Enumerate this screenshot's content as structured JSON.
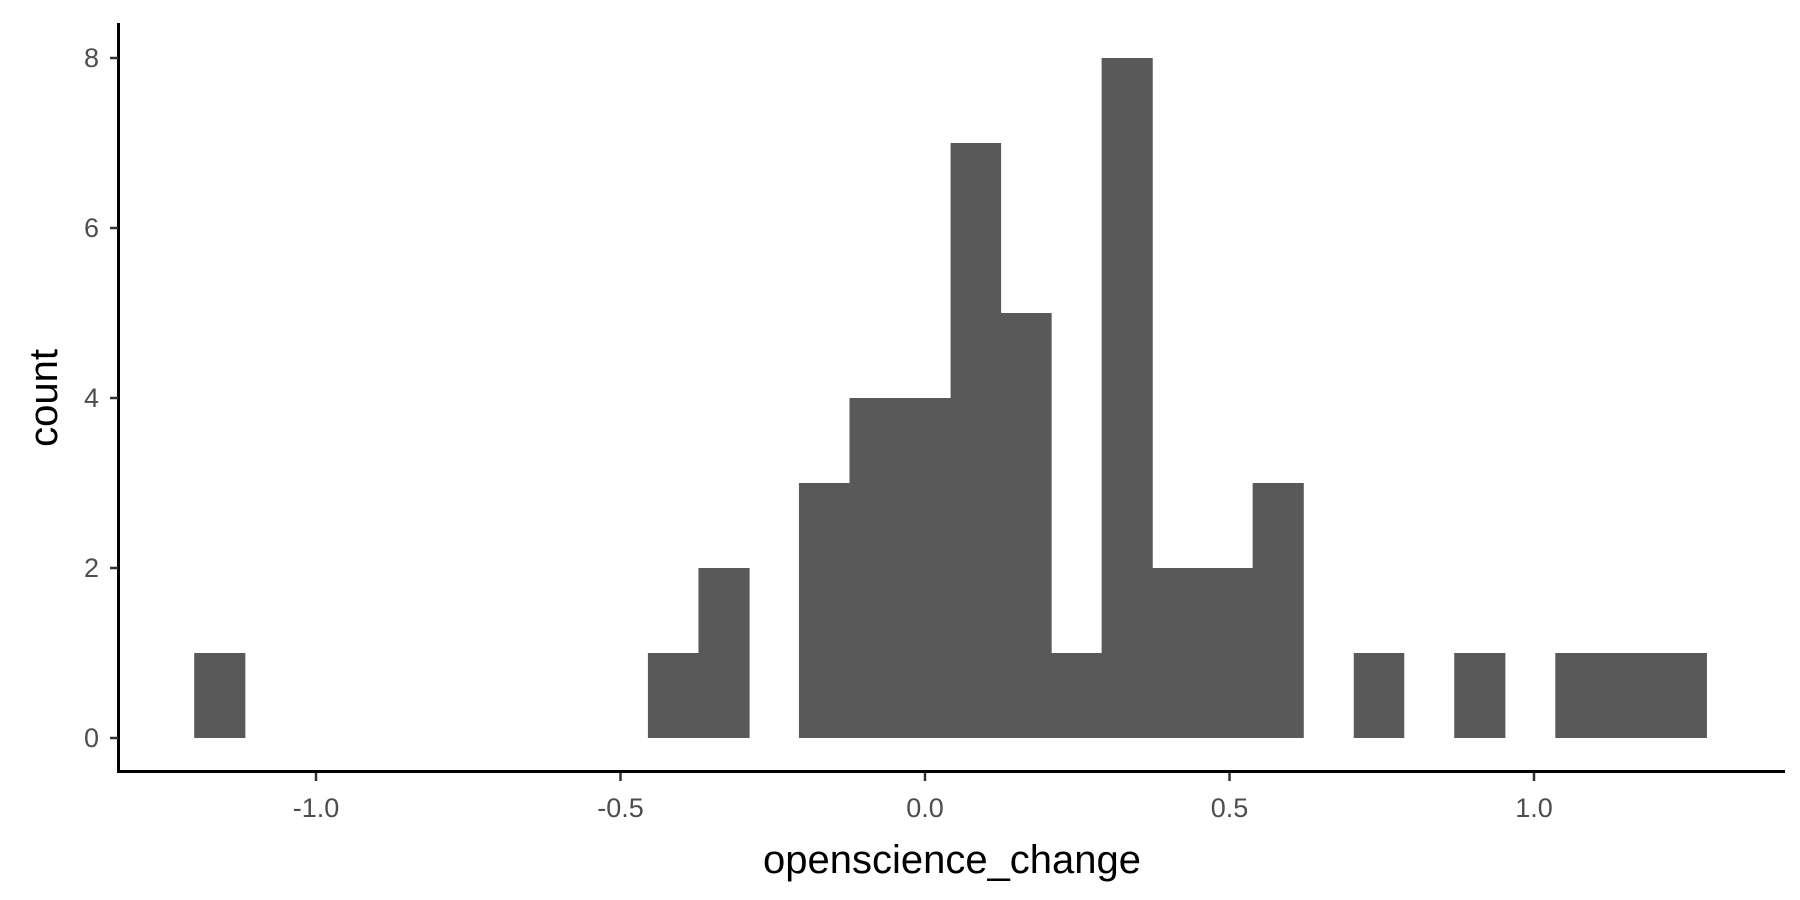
{
  "chart_data": {
    "type": "bar",
    "subtype": "histogram",
    "xlabel": "openscience_change",
    "ylabel": "count",
    "xlim": [
      -1.2,
      1.28
    ],
    "ylim": [
      0,
      8
    ],
    "x_ticks": [
      -1.0,
      -0.5,
      0.0,
      0.5,
      1.0
    ],
    "x_tick_labels": [
      "-1.0",
      "-0.5",
      "0.0",
      "0.5",
      "1.0"
    ],
    "y_ticks": [
      0,
      2,
      4,
      6,
      8
    ],
    "y_tick_labels": [
      "0",
      "2",
      "4",
      "6",
      "8"
    ],
    "bin_width": 0.0827,
    "bins": [
      {
        "x0": -1.2,
        "x1": -1.117,
        "count": 1
      },
      {
        "x0": -0.455,
        "x1": -0.372,
        "count": 1
      },
      {
        "x0": -0.372,
        "x1": -0.289,
        "count": 2
      },
      {
        "x0": -0.207,
        "x1": -0.124,
        "count": 3
      },
      {
        "x0": -0.124,
        "x1": -0.041,
        "count": 4
      },
      {
        "x0": -0.041,
        "x1": 0.042,
        "count": 4
      },
      {
        "x0": 0.042,
        "x1": 0.124,
        "count": 7
      },
      {
        "x0": 0.124,
        "x1": 0.207,
        "count": 5
      },
      {
        "x0": 0.207,
        "x1": 0.29,
        "count": 1
      },
      {
        "x0": 0.29,
        "x1": 0.373,
        "count": 8
      },
      {
        "x0": 0.373,
        "x1": 0.455,
        "count": 2
      },
      {
        "x0": 0.455,
        "x1": 0.538,
        "count": 2
      },
      {
        "x0": 0.538,
        "x1": 0.621,
        "count": 3
      },
      {
        "x0": 0.704,
        "x1": 0.786,
        "count": 1
      },
      {
        "x0": 0.869,
        "x1": 0.952,
        "count": 1
      },
      {
        "x0": 1.035,
        "x1": 1.117,
        "count": 1
      },
      {
        "x0": 1.117,
        "x1": 1.2,
        "count": 1
      },
      {
        "x0": 1.2,
        "x1": 1.283,
        "count": 1
      }
    ],
    "bar_color": "#595959",
    "grid": false,
    "legend": "none"
  }
}
